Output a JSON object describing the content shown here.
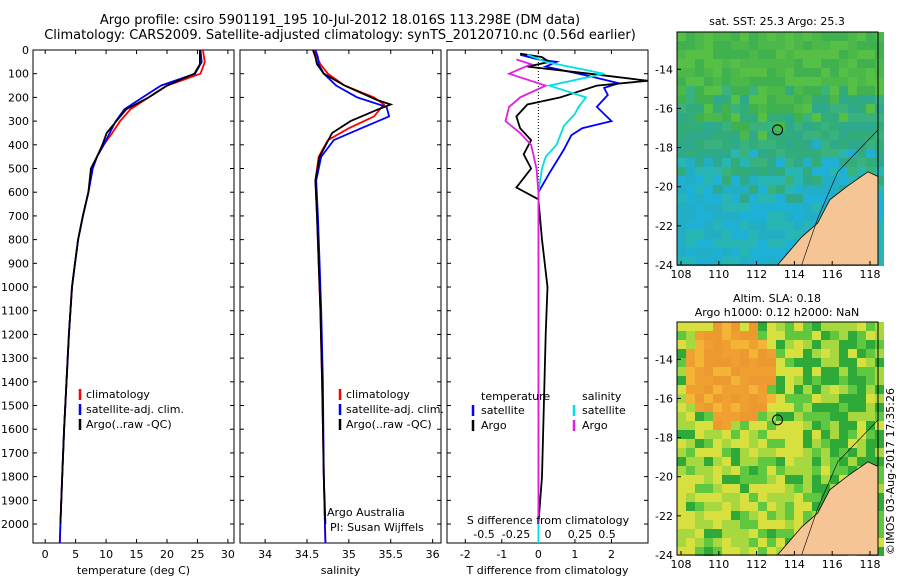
{
  "title": {
    "line1": "Argo profile: csiro 5901191_195 10-Jul-2012 18.016S 113.298E (DM data)",
    "line2": "Climatology: CARS2009. Satellite-adjusted climatology: synTS_20120710.nc (0.56d earlier)"
  },
  "colors": {
    "climatology": "#ff0000",
    "satellite": "#0000ff",
    "argo": "#000000",
    "sat_salinity": "#00e0e0",
    "argo_salinity": "#e020e0",
    "land": "#f6c596"
  },
  "depth_axis": {
    "ticks": [
      0,
      100,
      200,
      300,
      400,
      500,
      600,
      700,
      800,
      900,
      1000,
      1100,
      1200,
      1300,
      1400,
      1500,
      1600,
      1700,
      1800,
      1900,
      2000
    ],
    "range": [
      0,
      2080
    ]
  },
  "panels": {
    "temperature": {
      "xlabel": "temperature (deg C)",
      "xlim": [
        -2,
        31
      ],
      "xticks": [
        0,
        5,
        10,
        15,
        20,
        25,
        30
      ],
      "legend": [
        "climatology",
        "satellite-adj. clim.",
        "Argo(..raw -QC)"
      ]
    },
    "salinity": {
      "xlabel": "salinity",
      "xlim": [
        33.7,
        36.1
      ],
      "xticks": [
        34,
        34.5,
        35,
        35.5,
        36
      ],
      "legend": [
        "climatology",
        "satellite-adj. clim.",
        "Argo(..raw -QC)"
      ],
      "note1": "Argo Australia",
      "note2": "PI: Susan Wijffels"
    },
    "difference": {
      "xlabel": "T difference from climatology",
      "xlim": [
        -2.5,
        3.0
      ],
      "xticks": [
        -2,
        -1,
        0,
        1,
        2
      ],
      "top_label": "S difference from climatology",
      "top_ticks": [
        "-0.5",
        "-0.25",
        "0",
        "0.25",
        "0.5"
      ],
      "legend_t_title": "temperature",
      "legend_s_title": "salinity",
      "legend_t": [
        "satellite",
        "Argo"
      ],
      "legend_s": [
        "satellite",
        "Argo"
      ]
    }
  },
  "maps": {
    "sst": {
      "title": "sat. SST: 25.3 Argo: 25.3",
      "xticks": [
        "108",
        "110",
        "112",
        "114",
        "116",
        "118"
      ],
      "yticks": [
        "-14",
        "-16",
        "-18",
        "-20",
        "-22",
        "-24"
      ]
    },
    "sla": {
      "title1": "Altim. SLA: 0.18",
      "title2": "Argo h1000: 0.12 h2000: NaN",
      "xticks": [
        "108",
        "110",
        "112",
        "114",
        "116",
        "118"
      ],
      "yticks": [
        "-14",
        "-16",
        "-18",
        "-20",
        "-22",
        "-24"
      ]
    }
  },
  "credit": "©IMOS 03-Aug-2017 17:35:26",
  "chart_data": [
    {
      "type": "line",
      "xlabel": "temperature (deg C)",
      "ylabel": "depth",
      "series": [
        {
          "name": "climatology",
          "values": [
            [
              25.9,
              0
            ],
            [
              26.2,
              50
            ],
            [
              25.5,
              100
            ],
            [
              20,
              150
            ],
            [
              17,
              200
            ],
            [
              14,
              250
            ],
            [
              12.3,
              300
            ],
            [
              11,
              350
            ],
            [
              9.6,
              400
            ],
            [
              8.5,
              450
            ],
            [
              7.8,
              500
            ],
            [
              7.1,
              600
            ],
            [
              6.2,
              700
            ],
            [
              5.4,
              800
            ],
            [
              4.9,
              900
            ],
            [
              4.4,
              1000
            ],
            [
              3.9,
              1200
            ],
            [
              3.5,
              1400
            ],
            [
              3.1,
              1600
            ],
            [
              2.8,
              1800
            ],
            [
              2.5,
              2000
            ],
            [
              2.4,
              2080
            ]
          ]
        },
        {
          "name": "satellite-adj. clim.",
          "values": [
            [
              25.5,
              0
            ],
            [
              25.7,
              50
            ],
            [
              24.6,
              100
            ],
            [
              19,
              150
            ],
            [
              16,
              200
            ],
            [
              13,
              250
            ],
            [
              11.6,
              300
            ],
            [
              10.6,
              350
            ],
            [
              9.6,
              400
            ],
            [
              8.5,
              450
            ],
            [
              7.8,
              500
            ],
            [
              7.1,
              600
            ],
            [
              6.2,
              700
            ],
            [
              5.4,
              800
            ],
            [
              4.9,
              900
            ],
            [
              4.4,
              1000
            ],
            [
              3.9,
              1200
            ],
            [
              3.5,
              1400
            ],
            [
              3.1,
              1600
            ],
            [
              2.8,
              1800
            ],
            [
              2.5,
              2000
            ],
            [
              2.4,
              2080
            ]
          ]
        },
        {
          "name": "Argo(..raw -QC)",
          "values": [
            [
              25.4,
              0
            ],
            [
              25.4,
              60
            ],
            [
              24.5,
              100
            ],
            [
              20,
              150
            ],
            [
              17,
              200
            ],
            [
              13.3,
              250
            ],
            [
              11.7,
              300
            ],
            [
              10.1,
              350
            ],
            [
              9.4,
              400
            ],
            [
              8.5,
              450
            ],
            [
              7.5,
              500
            ],
            [
              7.1,
              600
            ],
            [
              6.2,
              700
            ],
            [
              5.4,
              800
            ],
            [
              4.9,
              900
            ],
            [
              4.4,
              1000
            ],
            [
              3.9,
              1200
            ],
            [
              3.5,
              1400
            ],
            [
              3.1,
              1600
            ],
            [
              2.8,
              1800
            ],
            [
              2.5,
              2000
            ]
          ]
        }
      ]
    },
    {
      "type": "line",
      "xlabel": "salinity",
      "ylabel": "depth",
      "series": [
        {
          "name": "climatology",
          "values": [
            [
              34.58,
              0
            ],
            [
              34.62,
              30
            ],
            [
              34.66,
              60
            ],
            [
              34.75,
              100
            ],
            [
              34.95,
              150
            ],
            [
              35.3,
              200
            ],
            [
              35.42,
              230
            ],
            [
              35.3,
              280
            ],
            [
              35.0,
              330
            ],
            [
              34.75,
              380
            ],
            [
              34.64,
              450
            ],
            [
              34.6,
              550
            ],
            [
              34.62,
              700
            ],
            [
              34.64,
              900
            ],
            [
              34.66,
              1100
            ],
            [
              34.68,
              1400
            ],
            [
              34.7,
              1800
            ],
            [
              34.72,
              2080
            ]
          ]
        },
        {
          "name": "satellite-adj. clim.",
          "values": [
            [
              34.6,
              0
            ],
            [
              34.63,
              30
            ],
            [
              34.64,
              60
            ],
            [
              34.7,
              100
            ],
            [
              34.85,
              150
            ],
            [
              35.1,
              200
            ],
            [
              35.45,
              240
            ],
            [
              35.48,
              280
            ],
            [
              35.15,
              330
            ],
            [
              34.82,
              380
            ],
            [
              34.67,
              450
            ],
            [
              34.61,
              550
            ],
            [
              34.63,
              700
            ],
            [
              34.65,
              900
            ],
            [
              34.67,
              1100
            ],
            [
              34.69,
              1400
            ],
            [
              34.7,
              1800
            ],
            [
              34.72,
              2080
            ]
          ]
        },
        {
          "name": "Argo(..raw -QC)",
          "values": [
            [
              34.57,
              0
            ],
            [
              34.6,
              30
            ],
            [
              34.62,
              60
            ],
            [
              34.7,
              100
            ],
            [
              34.95,
              150
            ],
            [
              35.33,
              210
            ],
            [
              35.5,
              230
            ],
            [
              35.35,
              250
            ],
            [
              35.02,
              300
            ],
            [
              34.8,
              350
            ],
            [
              34.65,
              450
            ],
            [
              34.6,
              550
            ],
            [
              34.62,
              700
            ],
            [
              34.64,
              900
            ],
            [
              34.66,
              1100
            ],
            [
              34.68,
              1400
            ],
            [
              34.7,
              1800
            ],
            [
              34.72,
              2000
            ]
          ]
        }
      ]
    },
    {
      "type": "line",
      "xlabel": "T difference from climatology",
      "ylabel": "depth",
      "series": [
        {
          "name": "temperature satellite",
          "values": [
            [
              -0.5,
              20
            ],
            [
              0,
              40
            ],
            [
              0.5,
              50
            ],
            [
              0.2,
              70
            ],
            [
              1.4,
              110
            ],
            [
              2.2,
              140
            ],
            [
              1.8,
              160
            ],
            [
              1.9,
              190
            ],
            [
              1.6,
              240
            ],
            [
              2,
              300
            ],
            [
              1.2,
              330
            ],
            [
              0.9,
              360
            ],
            [
              0.7,
              420
            ],
            [
              0.3,
              520
            ],
            [
              0,
              600
            ],
            [
              0,
              2000
            ]
          ]
        },
        {
          "name": "temperature Argo",
          "values": [
            [
              -0.5,
              15
            ],
            [
              0.1,
              30
            ],
            [
              0.3,
              50
            ],
            [
              -0.3,
              70
            ],
            [
              1.4,
              100
            ],
            [
              3.0,
              130
            ],
            [
              1.6,
              150
            ],
            [
              1.0,
              180
            ],
            [
              0.6,
              200
            ],
            [
              -0.3,
              230
            ],
            [
              -0.6,
              280
            ],
            [
              -0.5,
              330
            ],
            [
              -0.2,
              380
            ],
            [
              -0.4,
              440
            ],
            [
              -0.2,
              500
            ],
            [
              -0.6,
              580
            ],
            [
              0,
              630
            ],
            [
              0.1,
              800
            ],
            [
              0.25,
              1000
            ],
            [
              0.2,
              1200
            ],
            [
              0.1,
              1800
            ],
            [
              0,
              2000
            ]
          ]
        },
        {
          "name": "salinity satellite",
          "values": [
            [
              -0.3,
              20
            ],
            [
              0.2,
              50
            ],
            [
              1.8,
              100
            ],
            [
              0.3,
              150
            ],
            [
              1.3,
              200
            ],
            [
              1.1,
              240
            ],
            [
              1.0,
              270
            ],
            [
              0.7,
              320
            ],
            [
              0.5,
              400
            ],
            [
              0.2,
              450
            ],
            [
              0.1,
              500
            ],
            [
              0,
              600
            ],
            [
              0,
              2080
            ]
          ]
        },
        {
          "name": "salinity Argo",
          "values": [
            [
              -0.6,
              40
            ],
            [
              -0.2,
              60
            ],
            [
              -0.8,
              100
            ],
            [
              0.2,
              150
            ],
            [
              -0.5,
              200
            ],
            [
              -0.8,
              240
            ],
            [
              -0.9,
              300
            ],
            [
              -0.5,
              350
            ],
            [
              -0.2,
              400
            ],
            [
              -0.05,
              500
            ],
            [
              0,
              600
            ],
            [
              0,
              2000
            ]
          ]
        }
      ]
    }
  ]
}
